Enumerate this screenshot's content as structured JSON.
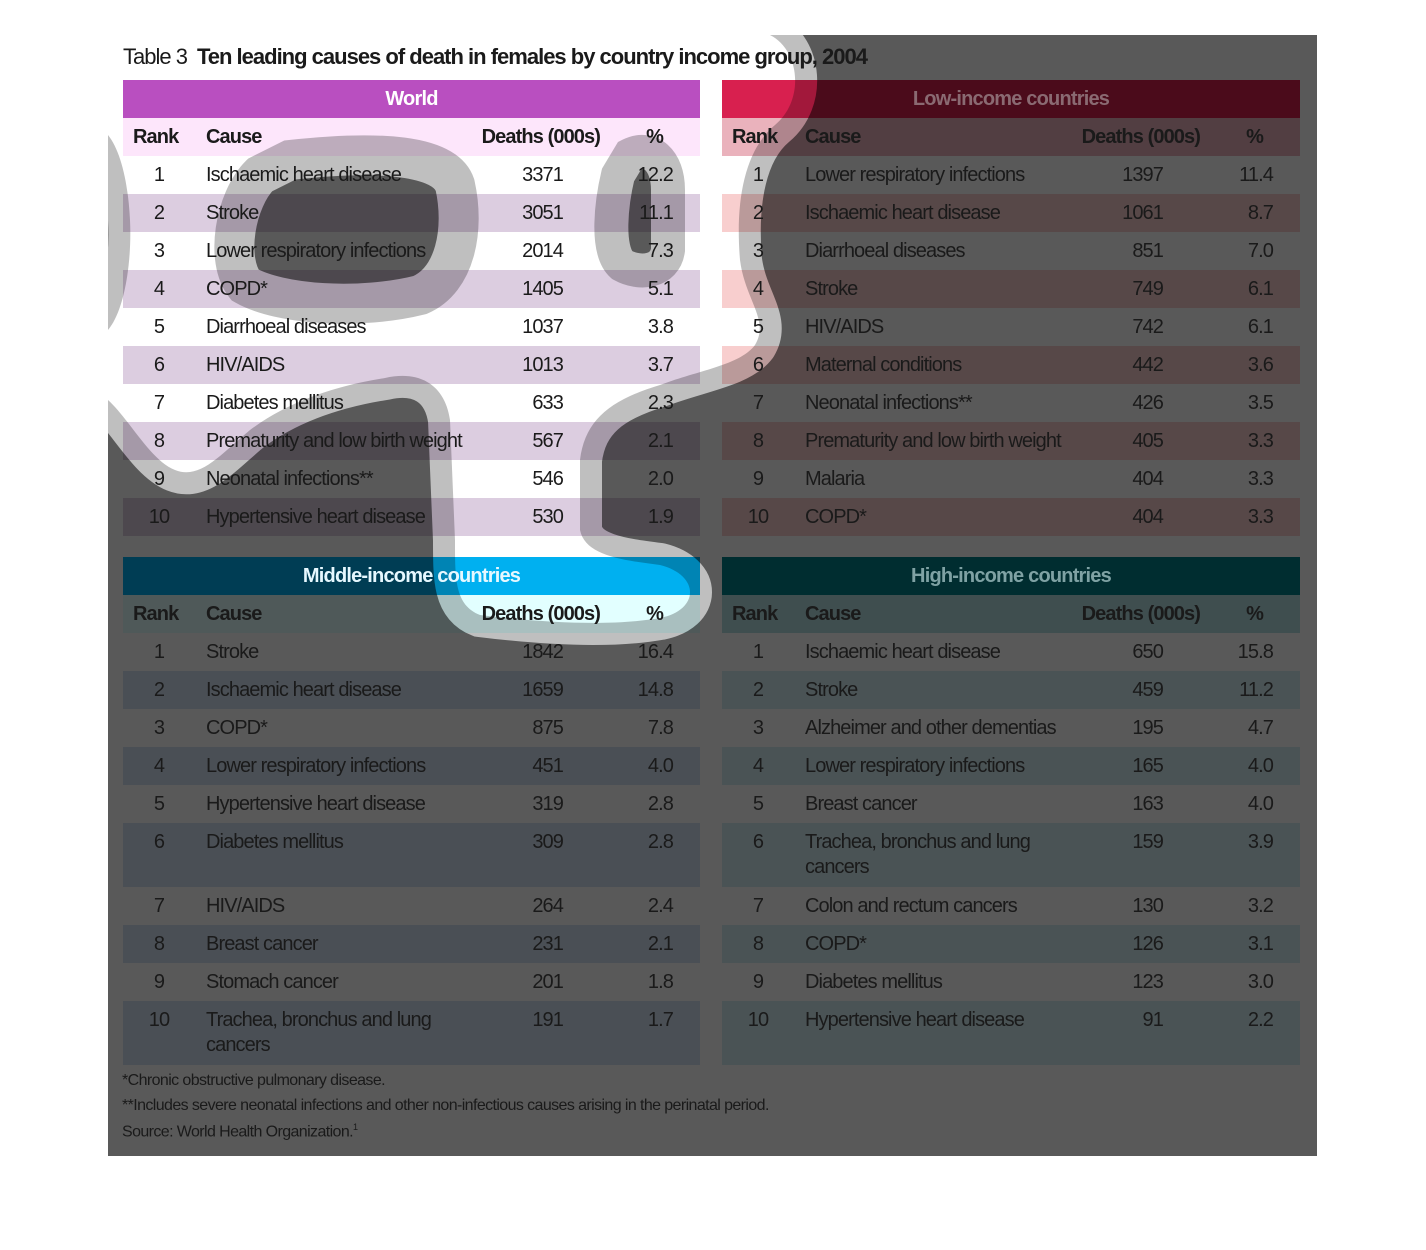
{
  "title": {
    "label": "Table 3",
    "text": "Ten leading causes of death in females by country income group, 2004"
  },
  "columns": {
    "rank": "Rank",
    "cause": "Cause",
    "deaths": "Deaths (000s)",
    "pct": "%"
  },
  "colors": {
    "world": "#b94fc0",
    "low": "#ff4f8f",
    "middle": "#00b0f0",
    "high": "#00808a"
  },
  "tables": [
    {
      "id": "world",
      "title": "World",
      "header_color": "#b94fc0",
      "sub_color": "#fde6fb",
      "stripe_color": "#dccde0",
      "rows": [
        {
          "rank": "1",
          "cause": "Ischaemic heart disease",
          "deaths": "3371",
          "pct": "12.2"
        },
        {
          "rank": "2",
          "cause": "Stroke",
          "deaths": "3051",
          "pct": "11.1"
        },
        {
          "rank": "3",
          "cause": "Lower respiratory infections",
          "deaths": "2014",
          "pct": "7.3"
        },
        {
          "rank": "4",
          "cause": "COPD*",
          "deaths": "1405",
          "pct": "5.1"
        },
        {
          "rank": "5",
          "cause": "Diarrhoeal diseases",
          "deaths": "1037",
          "pct": "3.8"
        },
        {
          "rank": "6",
          "cause": "HIV/AIDS",
          "deaths": "1013",
          "pct": "3.7"
        },
        {
          "rank": "7",
          "cause": "Diabetes mellitus",
          "deaths": "633",
          "pct": "2.3"
        },
        {
          "rank": "8",
          "cause": "Prematurity and low birth weight",
          "deaths": "567",
          "pct": "2.1"
        },
        {
          "rank": "9",
          "cause": "Neonatal infections**",
          "deaths": "546",
          "pct": "2.0"
        },
        {
          "rank": "10",
          "cause": "Hypertensive heart disease",
          "deaths": "530",
          "pct": "1.9"
        }
      ]
    },
    {
      "id": "low",
      "title": "Low-income countries",
      "header_color": "#d8204f",
      "sub_color": "#eab2bc",
      "stripe_color": "#f8cece",
      "rows": [
        {
          "rank": "1",
          "cause": "Lower respiratory infections",
          "deaths": "1397",
          "pct": "11.4"
        },
        {
          "rank": "2",
          "cause": "Ischaemic heart disease",
          "deaths": "1061",
          "pct": "8.7"
        },
        {
          "rank": "3",
          "cause": "Diarrhoeal diseases",
          "deaths": "851",
          "pct": "7.0"
        },
        {
          "rank": "4",
          "cause": "Stroke",
          "deaths": "749",
          "pct": "6.1"
        },
        {
          "rank": "5",
          "cause": "HIV/AIDS",
          "deaths": "742",
          "pct": "6.1"
        },
        {
          "rank": "6",
          "cause": "Maternal conditions",
          "deaths": "442",
          "pct": "3.6"
        },
        {
          "rank": "7",
          "cause": "Neonatal infections**",
          "deaths": "426",
          "pct": "3.5"
        },
        {
          "rank": "8",
          "cause": "Prematurity and low birth weight",
          "deaths": "405",
          "pct": "3.3"
        },
        {
          "rank": "9",
          "cause": "Malaria",
          "deaths": "404",
          "pct": "3.3"
        },
        {
          "rank": "10",
          "cause": "COPD*",
          "deaths": "404",
          "pct": "3.3"
        }
      ]
    },
    {
      "id": "middle",
      "title": "Middle-income countries",
      "header_color": "#00b0f0",
      "sub_color": "#e2ffff",
      "stripe_color": "#d3e2f3",
      "rows": [
        {
          "rank": "1",
          "cause": "Stroke",
          "deaths": "1842",
          "pct": "16.4"
        },
        {
          "rank": "2",
          "cause": "Ischaemic heart disease",
          "deaths": "1659",
          "pct": "14.8"
        },
        {
          "rank": "3",
          "cause": "COPD*",
          "deaths": "875",
          "pct": "7.8"
        },
        {
          "rank": "4",
          "cause": "Lower respiratory infections",
          "deaths": "451",
          "pct": "4.0"
        },
        {
          "rank": "5",
          "cause": "Hypertensive heart disease",
          "deaths": "319",
          "pct": "2.8"
        },
        {
          "rank": "6",
          "cause": "Diabetes mellitus",
          "deaths": "309",
          "pct": "2.8"
        },
        {
          "rank": "7",
          "cause": "HIV/AIDS",
          "deaths": "264",
          "pct": "2.4"
        },
        {
          "rank": "8",
          "cause": "Breast cancer",
          "deaths": "231",
          "pct": "2.1"
        },
        {
          "rank": "9",
          "cause": "Stomach cancer",
          "deaths": "201",
          "pct": "1.8"
        },
        {
          "rank": "10",
          "cause": "Trachea, bronchus and lung cancers",
          "deaths": "191",
          "pct": "1.7"
        }
      ]
    },
    {
      "id": "high",
      "title": "High-income countries",
      "header_color": "#00808a",
      "sub_color": "#b5dfe3",
      "stripe_color": "#d3eef4",
      "rows": [
        {
          "rank": "1",
          "cause": "Ischaemic heart disease",
          "deaths": "650",
          "pct": "15.8"
        },
        {
          "rank": "2",
          "cause": "Stroke",
          "deaths": "459",
          "pct": "11.2"
        },
        {
          "rank": "3",
          "cause": "Alzheimer and other dementias",
          "deaths": "195",
          "pct": "4.7"
        },
        {
          "rank": "4",
          "cause": "Lower respiratory infections",
          "deaths": "165",
          "pct": "4.0"
        },
        {
          "rank": "5",
          "cause": "Breast cancer",
          "deaths": "163",
          "pct": "4.0"
        },
        {
          "rank": "6",
          "cause": "Trachea, bronchus and lung cancers",
          "deaths": "159",
          "pct": "3.9"
        },
        {
          "rank": "7",
          "cause": "Colon and rectum cancers",
          "deaths": "130",
          "pct": "3.2"
        },
        {
          "rank": "8",
          "cause": "COPD*",
          "deaths": "126",
          "pct": "3.1"
        },
        {
          "rank": "9",
          "cause": "Diabetes mellitus",
          "deaths": "123",
          "pct": "3.0"
        },
        {
          "rank": "10",
          "cause": "Hypertensive heart disease",
          "deaths": "91",
          "pct": "2.2"
        }
      ]
    }
  ],
  "footnotes": {
    "copd": "*Chronic obstructive pulmonary disease.",
    "neonatal": "**Includes severe neonatal infections and other non-infectious causes arising in the perinatal period.",
    "source": "Source: World Health Organization.",
    "source_ref": "1"
  }
}
